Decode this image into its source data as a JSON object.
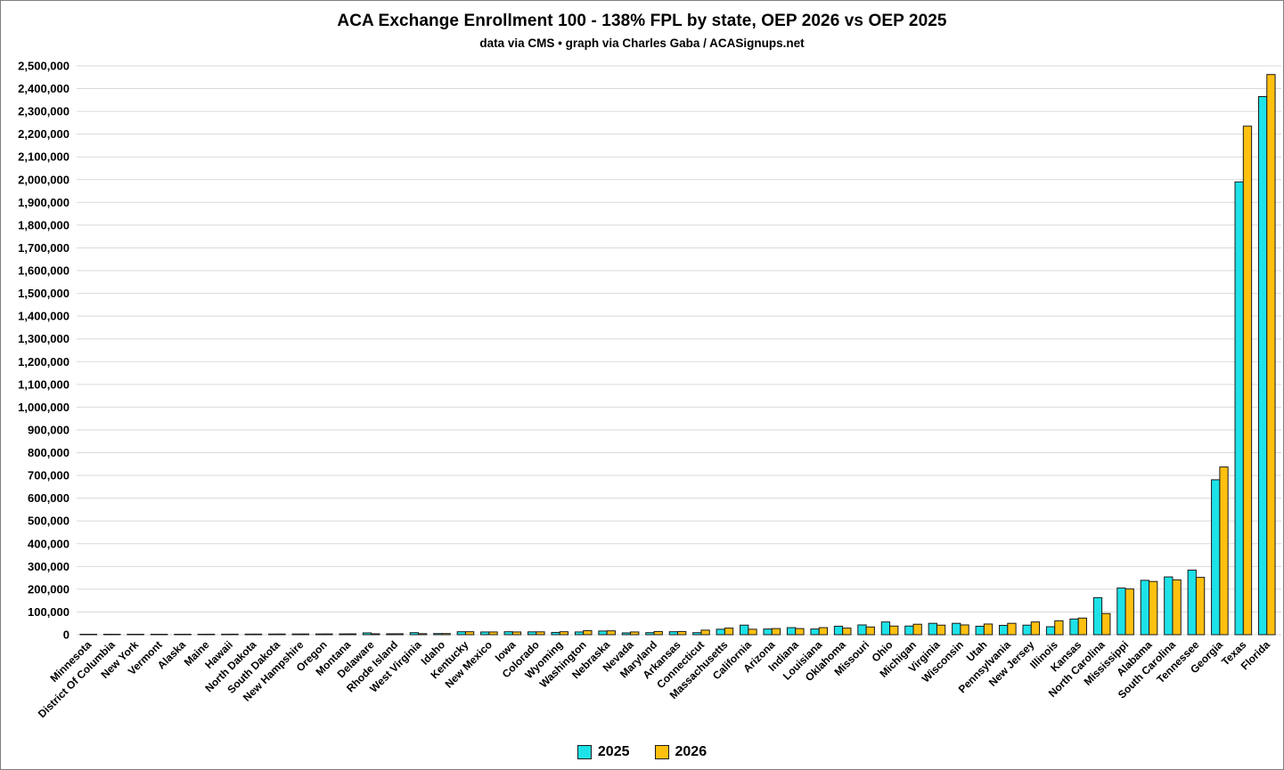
{
  "title": "ACA Exchange Enrollment 100 - 138% FPL by state, OEP 2026 vs OEP 2025",
  "subtitle": "data via CMS • graph via Charles Gaba / ACASignups.net",
  "colors": {
    "series_2025": "#1DE2E8",
    "series_2026": "#FFC010",
    "bar_outline": "#1a1a1a",
    "gridline": "#D9D9D9",
    "text": "#000000"
  },
  "legend": {
    "items": [
      {
        "label": "2025",
        "color": "#1DE2E8"
      },
      {
        "label": "2026",
        "color": "#FFC010"
      }
    ]
  },
  "chart_data": {
    "type": "bar",
    "title": "ACA Exchange Enrollment 100 - 138% FPL by state, OEP 2026 vs OEP 2025",
    "subtitle": "data via CMS • graph via Charles Gaba / ACASignups.net",
    "xlabel": "",
    "ylabel": "",
    "ylim": [
      0,
      2500000
    ],
    "ytick_step": 100000,
    "grid": true,
    "legend_position": "bottom",
    "categories": [
      "Minnesota",
      "District Of Columbia",
      "New York",
      "Vermont",
      "Alaska",
      "Maine",
      "Hawaii",
      "North Dakota",
      "South Dakota",
      "New Hampshire",
      "Oregon",
      "Montana",
      "Delaware",
      "Rhode Island",
      "West Virginia",
      "Idaho",
      "Kentucky",
      "New Mexico",
      "Iowa",
      "Colorado",
      "Wyoming",
      "Washington",
      "Nebraska",
      "Nevada",
      "Maryland",
      "Arkansas",
      "Connecticut",
      "Massachusetts",
      "California",
      "Arizona",
      "Indiana",
      "Louisiana",
      "Oklahoma",
      "Missouri",
      "Ohio",
      "Michigan",
      "Virginia",
      "Wisconsin",
      "Utah",
      "Pennsylvania",
      "New Jersey",
      "Illinois",
      "Kansas",
      "North Carolina",
      "Mississippi",
      "Alabama",
      "South Carolina",
      "Tennessee",
      "Georgia",
      "Texas",
      "Florida"
    ],
    "series": [
      {
        "name": "2025",
        "color": "#1DE2E8",
        "values": [
          1000,
          1200,
          1400,
          1500,
          1800,
          2000,
          2200,
          2500,
          2800,
          3000,
          3200,
          3500,
          8000,
          4000,
          9000,
          5000,
          13000,
          12000,
          13000,
          12500,
          10000,
          12000,
          16000,
          8000,
          9000,
          13000,
          9000,
          24000,
          42000,
          25000,
          31000,
          25000,
          37000,
          43000,
          56000,
          38000,
          50000,
          50000,
          37000,
          41000,
          42000,
          35000,
          69000,
          163000,
          205000,
          239000,
          254000,
          284000,
          681000,
          1990000,
          2365000
        ]
      },
      {
        "name": "2026",
        "color": "#FFC010",
        "values": [
          1200,
          1400,
          1600,
          1700,
          2000,
          2200,
          2400,
          2700,
          3000,
          3200,
          3500,
          3800,
          4000,
          4200,
          4500,
          5000,
          13000,
          12000,
          12000,
          12500,
          13000,
          18000,
          17000,
          12000,
          14000,
          14000,
          20000,
          29000,
          24000,
          27000,
          27000,
          31000,
          29000,
          34000,
          38000,
          46000,
          42000,
          43000,
          47000,
          50000,
          56000,
          61000,
          73000,
          93000,
          201000,
          234000,
          241000,
          252000,
          737000,
          2235000,
          2462000
        ]
      }
    ]
  }
}
